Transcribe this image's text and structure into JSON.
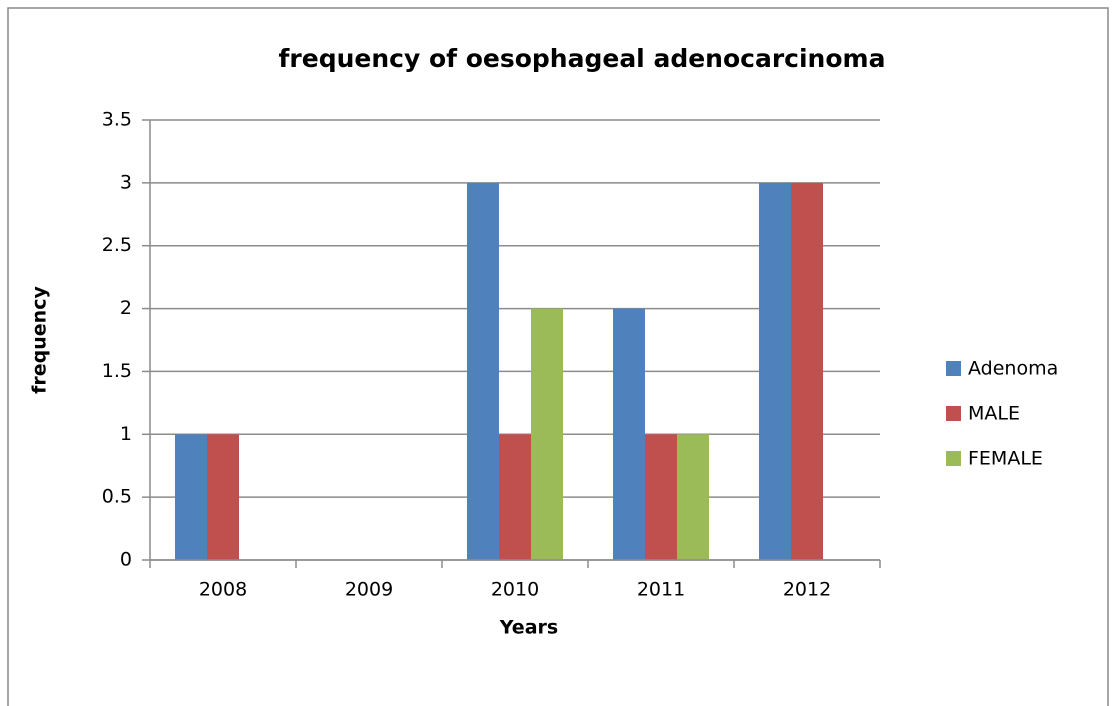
{
  "chart_data": {
    "type": "bar",
    "title": "frequency of oesophageal adenocarcinoma",
    "x_label": "Years",
    "y_label": "frequency",
    "categories": [
      "2008",
      "2009",
      "2010",
      "2011",
      "2012"
    ],
    "series": [
      {
        "name": "Adenoma",
        "color": "#4f81bd",
        "values": [
          1,
          0,
          3,
          2,
          3
        ]
      },
      {
        "name": "MALE",
        "color": "#c0504d",
        "values": [
          1,
          0,
          1,
          1,
          3
        ]
      },
      {
        "name": "FEMALE",
        "color": "#9bbb59",
        "values": [
          0,
          0,
          2,
          1,
          0
        ]
      }
    ],
    "ylim": [
      0,
      3.5
    ],
    "yticks": [
      0,
      0.5,
      1,
      1.5,
      2,
      2.5,
      3,
      3.5
    ],
    "grid": true,
    "legend": "right"
  }
}
